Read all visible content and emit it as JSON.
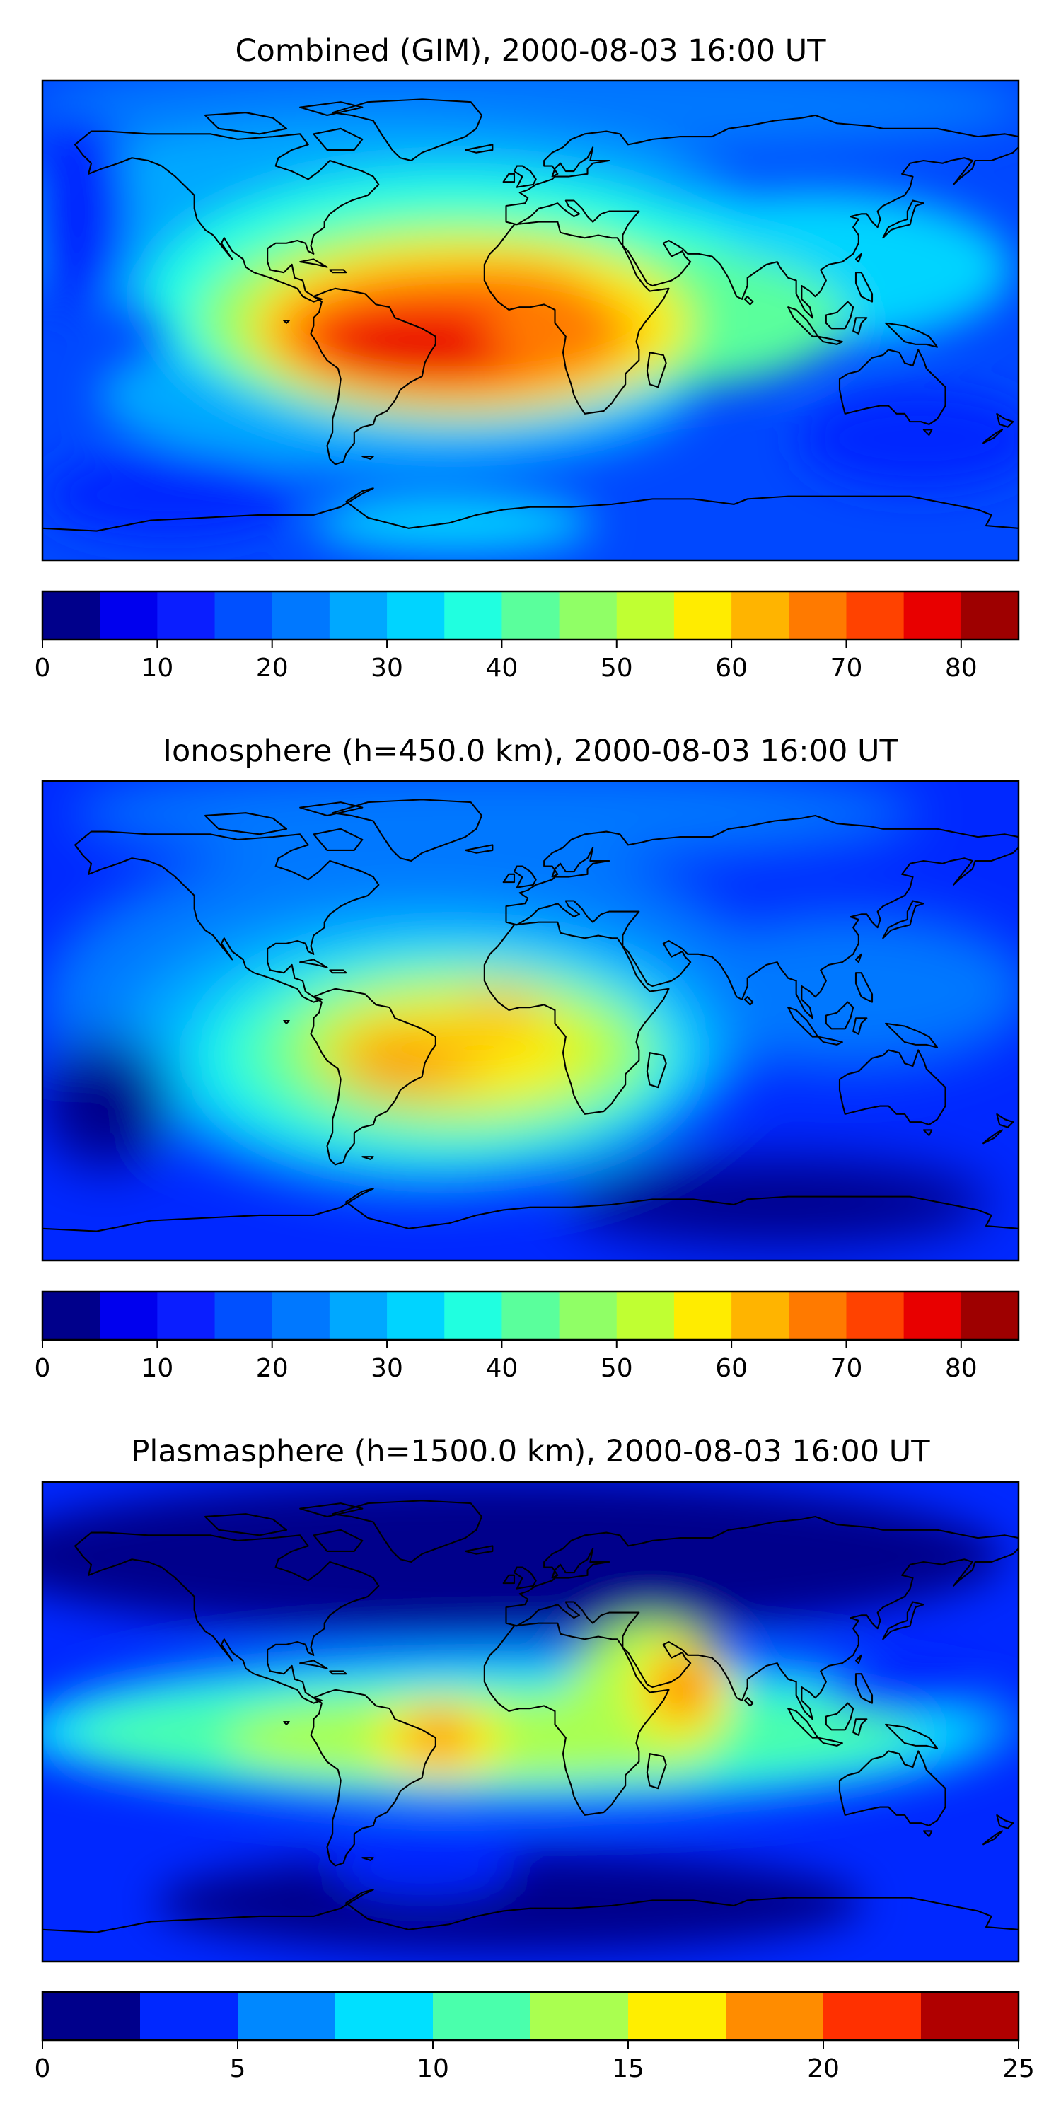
{
  "chart_data": [
    {
      "type": "heatmap",
      "title": "Combined (GIM), 2000-08-03 16:00 UT",
      "colorbar": {
        "levels": [
          0,
          5,
          10,
          15,
          20,
          25,
          30,
          35,
          40,
          45,
          50,
          55,
          60,
          65,
          70,
          75,
          80,
          85
        ],
        "ticks": [
          0,
          10,
          20,
          30,
          40,
          50,
          60,
          70,
          80
        ],
        "tick_labels": [
          "0",
          "10",
          "20",
          "30",
          "40",
          "50",
          "60",
          "70",
          "80"
        ],
        "range": [
          0,
          85
        ]
      },
      "features": [
        {
          "name": "maximum over South America / equatorial Atlantic",
          "lon": -45,
          "lat": -5,
          "value": 82
        },
        {
          "name": "high over equatorial Africa",
          "lon": 0,
          "lat": 0,
          "value": 68
        },
        {
          "name": "moderate over Indian Ocean",
          "lon": 60,
          "lat": 5,
          "value": 45
        },
        {
          "name": "minimum near poles",
          "lon": 0,
          "lat": 75,
          "value": 12
        }
      ]
    },
    {
      "type": "heatmap",
      "title": "Ionosphere  (h=450.0 km), 2000-08-03 16:00 UT",
      "colorbar": {
        "levels": [
          0,
          5,
          10,
          15,
          20,
          25,
          30,
          35,
          40,
          45,
          50,
          55,
          60,
          65,
          70,
          75,
          80,
          85
        ],
        "ticks": [
          0,
          10,
          20,
          30,
          40,
          50,
          60,
          70,
          80
        ],
        "tick_labels": [
          "0",
          "10",
          "20",
          "30",
          "40",
          "50",
          "60",
          "70",
          "80"
        ],
        "range": [
          0,
          85
        ]
      },
      "features": [
        {
          "name": "maximum over Brazil",
          "lon": -50,
          "lat": -10,
          "value": 67
        },
        {
          "name": "secondary peak over Gulf of Guinea",
          "lon": -15,
          "lat": 10,
          "value": 62
        },
        {
          "name": "high over Africa",
          "lon": 10,
          "lat": 0,
          "value": 52
        },
        {
          "name": "low over southern Pacific",
          "lon": 150,
          "lat": -40,
          "value": 8
        }
      ]
    },
    {
      "type": "heatmap",
      "title": "Plasmasphere (h=1500.0 km), 2000-08-03 16:00 UT",
      "colorbar": {
        "levels": [
          0,
          2.5,
          5,
          7.5,
          10,
          12.5,
          15,
          17.5,
          20,
          22.5,
          25
        ],
        "ticks": [
          0,
          5,
          10,
          15,
          20,
          25
        ],
        "tick_labels": [
          "0",
          "5",
          "10",
          "15",
          "20",
          "25"
        ],
        "range": [
          0,
          25
        ]
      },
      "features": [
        {
          "name": "peak over Horn of Africa",
          "lon": 45,
          "lat": 12,
          "value": 21
        },
        {
          "name": "peak over eastern Brazil",
          "lon": -35,
          "lat": -5,
          "value": 19
        },
        {
          "name": "equatorial band",
          "lon": 0,
          "lat": 0,
          "value": 14
        },
        {
          "name": "minimum at high latitudes",
          "lon": -90,
          "lat": 60,
          "value": 2
        }
      ]
    }
  ],
  "colors": {
    "jet_17": [
      "#00008b",
      "#0000ee",
      "#0a1eff",
      "#0050ff",
      "#0078ff",
      "#00a8ff",
      "#00d4ff",
      "#20ffe0",
      "#5aff9c",
      "#90ff66",
      "#c0ff32",
      "#ffec00",
      "#ffb400",
      "#ff7a00",
      "#ff4200",
      "#e80000",
      "#9e0000"
    ],
    "jet_10": [
      "#00008b",
      "#0028ff",
      "#0088ff",
      "#00e0ff",
      "#4affac",
      "#aaff50",
      "#ffee00",
      "#ff8c00",
      "#ff3000",
      "#b00000"
    ]
  }
}
